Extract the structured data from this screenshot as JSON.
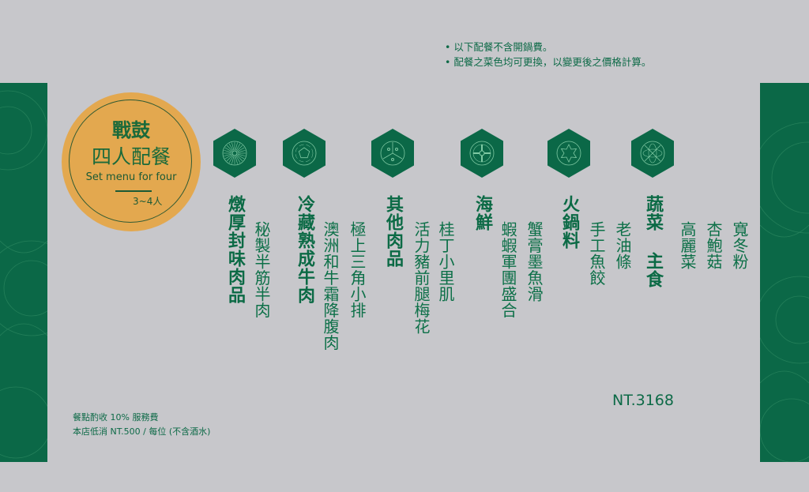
{
  "notes": [
    "• 以下配餐不含開鍋費。",
    "• 配餐之菜色均可更換，以變更後之價格計算。"
  ],
  "badge": {
    "title": "戰鼓",
    "subtitle": "四人配餐",
    "english": "Set menu for four",
    "people": "3~4人"
  },
  "colors": {
    "green": "#0b6847",
    "orange": "#e3a84f",
    "background": "#c7c7cb"
  },
  "categories": [
    {
      "name": "燉厚封味肉品",
      "icon": "sunburst-emblem-icon",
      "items": [
        "秘製半筋半肉"
      ]
    },
    {
      "name": "冷藏熟成牛肉",
      "icon": "pentagon-flower-emblem-icon",
      "items": [
        "澳洲和牛霜降腹肉",
        "極上三角小排"
      ]
    },
    {
      "name": "其他肉品",
      "icon": "three-petal-emblem-icon",
      "items": [
        "活力豬前腿梅花",
        "桂丁小里肌"
      ]
    },
    {
      "name": "海鮮",
      "icon": "cross-ring-emblem-icon",
      "items": [
        "蝦蝦軍團盛合",
        "蟹膏墨魚滑"
      ]
    },
    {
      "name": "火鍋料",
      "icon": "star-emblem-icon",
      "items": [
        "手工魚餃",
        "老油條"
      ]
    },
    {
      "name": "蔬菜 主食",
      "icon": "leaf-ball-emblem-icon",
      "items": [
        "高麗菜",
        "杏鮑菇",
        "寬冬粉"
      ]
    }
  ],
  "price": "NT.3168",
  "footer": [
    "餐點酌收 10% 服務費",
    "本店低消 NT.500 / 每位 (不含酒水)"
  ]
}
